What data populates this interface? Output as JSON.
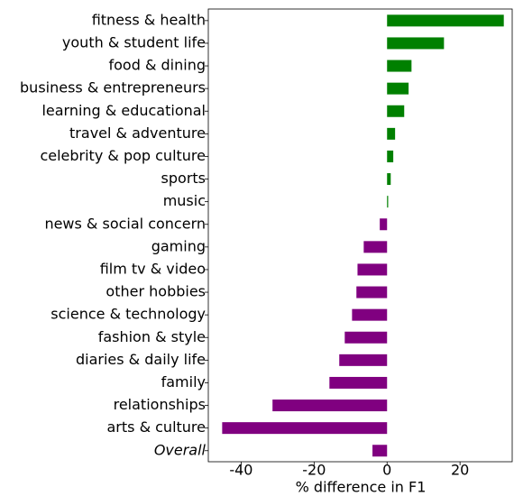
{
  "chart_data": {
    "type": "barh",
    "categories": [
      "fitness & health",
      "youth & student life",
      "food & dining",
      "business & entrepreneurs",
      "learning & educational",
      "travel & adventure",
      "celebrity & pop culture",
      "sports",
      "music",
      "news & social concern",
      "gaming",
      "film tv & video",
      "other hobbies",
      "science & technology",
      "fashion & style",
      "diaries & daily life",
      "family",
      "relationships",
      "arts & culture",
      "Overall"
    ],
    "values": [
      32,
      15.6,
      6.7,
      5.9,
      4.7,
      2.2,
      1.7,
      1.0,
      0.3,
      -2.0,
      -6.4,
      -8.1,
      -8.4,
      -9.6,
      -11.6,
      -13.1,
      -15.8,
      -31.4,
      -45.2,
      -4.0
    ],
    "positive_color": "#008000",
    "negative_color": "#800080",
    "xlabel": "% difference in F1",
    "xlim": [
      -49,
      34.3
    ],
    "xticks": [
      -40,
      -20,
      0,
      20
    ],
    "grid": false
  }
}
